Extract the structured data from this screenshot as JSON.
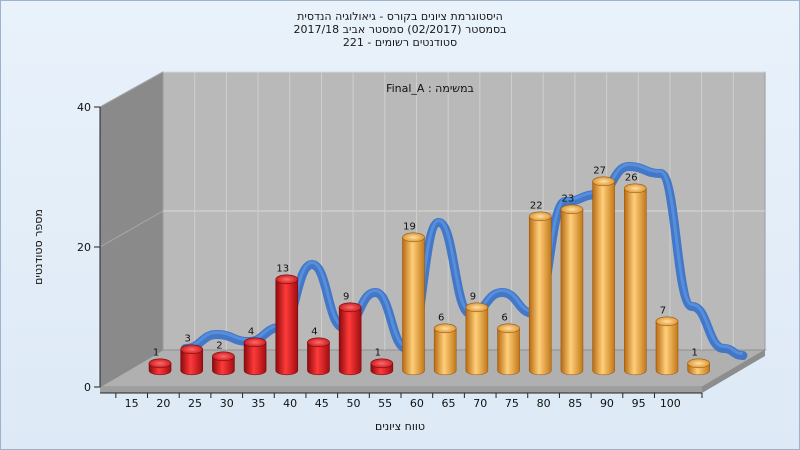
{
  "chart_data": {
    "type": "bar",
    "title_lines": [
      "היסטוגרמת ציונים בקורס - גיאולוגיה הנדסית",
      "בסמסטר  (02/2017)  סמסטר אביב 2017/18",
      "סטודנטים רשומים - 221"
    ],
    "annotation": "במשימה : Final_A",
    "xlabel": "טווח ציונים",
    "ylabel": "מספר סטודנטים",
    "categories": [
      "15",
      "20",
      "25",
      "30",
      "35",
      "40",
      "45",
      "50",
      "55",
      "60",
      "65",
      "70",
      "75",
      "80",
      "85",
      "90",
      "95",
      "100"
    ],
    "values": [
      1,
      3,
      2,
      4,
      13,
      4,
      9,
      1,
      19,
      6,
      9,
      6,
      22,
      23,
      27,
      26,
      7,
      1
    ],
    "bar_colors": [
      "red",
      "red",
      "red",
      "red",
      "red",
      "red",
      "red",
      "red",
      "orange",
      "orange",
      "orange",
      "orange",
      "orange",
      "orange",
      "orange",
      "orange",
      "orange",
      "orange"
    ],
    "yticks": [
      0,
      20,
      40
    ],
    "ylim": [
      0,
      40
    ],
    "grid": true,
    "trend_line": true
  },
  "colors": {
    "red_bar": "#e0141a",
    "orange_bar": "#e79a2a",
    "trend": "#3b74c7",
    "back_wall": "#b9b9b9",
    "side_wall": "#8a8a8a",
    "floor": "#b0b0b0"
  }
}
